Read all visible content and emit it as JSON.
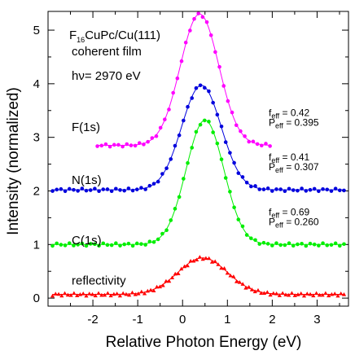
{
  "chart_data": {
    "type": "line",
    "title": "F16CuPc/Cu(111)",
    "title_parts": {
      "base": "F",
      "sub": "16",
      "rest": "CuPc/Cu(111)"
    },
    "subtitle": "coherent film",
    "energy_label": "hν= 2970 eV",
    "xlabel": "Relative Photon Energy (eV)",
    "ylabel": "Intensity (normalized)",
    "xlim": [
      -3.0,
      3.7
    ],
    "ylim": [
      -0.15,
      5.35
    ],
    "xticks": [
      -2,
      -1,
      0,
      1,
      2,
      3
    ],
    "xtick_labels": [
      "-2",
      "-1",
      "0",
      "1",
      "2",
      "3"
    ],
    "yticks": [
      0,
      1,
      2,
      3,
      4,
      5
    ],
    "ytick_labels": [
      "0",
      "1",
      "2",
      "3",
      "4",
      "5"
    ],
    "series": [
      {
        "name": "reflectivity",
        "color": "#ff0000",
        "marker": "triangle",
        "baseline": 0.07,
        "amplitude": 0.68,
        "center": 0.45,
        "sigma": 0.55,
        "x_start": -2.9,
        "x_end": 3.6,
        "n": 96
      },
      {
        "name": "C(1s)",
        "color": "#00ee00",
        "marker": "circle",
        "baseline": 1.0,
        "amplitude": 2.32,
        "center": 0.5,
        "sigma": 0.42,
        "x_start": -2.9,
        "x_end": 3.6,
        "n": 70,
        "f_eff": "0.69",
        "p_eff": "0.260"
      },
      {
        "name": "N(1s)",
        "color": "#0000dd",
        "marker": "circle",
        "baseline": 2.02,
        "amplitude": 1.95,
        "center": 0.42,
        "sigma": 0.44,
        "x_start": -2.9,
        "x_end": 3.6,
        "n": 70,
        "f_eff": "0.41",
        "p_eff": "0.307"
      },
      {
        "name": "F(1s)",
        "color": "#ff00ff",
        "marker": "circle",
        "baseline": 2.85,
        "amplitude": 2.45,
        "center": 0.38,
        "sigma": 0.43,
        "x_start": -1.9,
        "x_end": 1.95,
        "n": 42,
        "f_eff": "0.42",
        "p_eff": "0.395"
      }
    ],
    "eq_labels": {
      "f": "f",
      "f_sub": "eff",
      "p": "P",
      "p_sub": "eff"
    }
  }
}
